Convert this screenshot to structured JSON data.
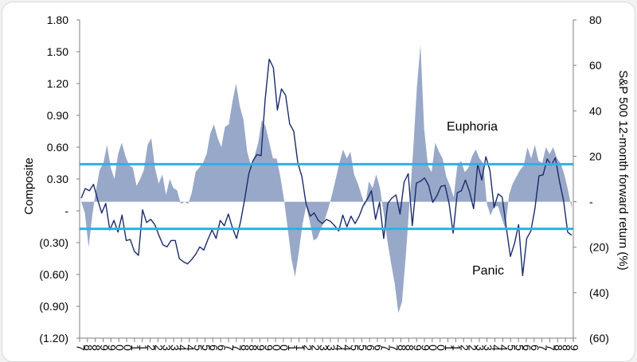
{
  "chart_data": {
    "type": "line",
    "ylabel_left": "Composite",
    "ylabel_right": "S&P 500 12-month forward return (%)",
    "left_axis": {
      "min": -1.2,
      "max": 1.8,
      "ticks": [
        1.8,
        1.5,
        1.2,
        0.9,
        0.6,
        0.3,
        0,
        -0.3,
        -0.6,
        -0.9,
        -1.2
      ],
      "tick_labels": [
        "1.80",
        "1.50",
        "1.20",
        "0.90",
        "0.60",
        "0.30",
        "-",
        "(0.30)",
        "(0.60)",
        "(0.90)",
        "(1.20)"
      ]
    },
    "right_axis": {
      "min": -60,
      "max": 80,
      "ticks": [
        80,
        60,
        40,
        20,
        0,
        -20,
        -40,
        -60
      ],
      "tick_labels": [
        "80",
        "60",
        "40",
        "20",
        "-",
        "(20)",
        "(40)",
        "(60)"
      ]
    },
    "x_tick_labels": [
      "7",
      "8",
      "8",
      "9",
      "9",
      "0",
      "0",
      "1",
      "1",
      "2",
      "2",
      "3",
      "3",
      "4",
      "4",
      "5",
      "5",
      "6",
      "6",
      "7",
      "7",
      "8",
      "8",
      "9",
      "9",
      "0",
      "0",
      "1",
      "1",
      "2",
      "2",
      "3",
      "3",
      "4",
      "4",
      "5",
      "5",
      "6",
      "6",
      "7",
      "7",
      "8",
      "8",
      "9",
      "9",
      "0",
      "0",
      "1",
      "1",
      "2",
      "2",
      "3",
      "3",
      "4",
      "4",
      "5",
      "5",
      "6",
      "6",
      "7",
      "7",
      "8",
      "8",
      "9"
    ],
    "thresholds": [
      {
        "label": "Euphoria",
        "value": 0.44,
        "color": "#27b4e3"
      },
      {
        "label": "Panic",
        "value": -0.17,
        "color": "#27b4e3"
      }
    ],
    "series": [
      {
        "name": "S&P 500 12-month forward return",
        "type": "area",
        "axis": "right",
        "color": "#98a8c8",
        "values": [
          0,
          -5,
          -20,
          -6,
          5,
          14,
          17,
          25,
          15,
          10,
          21,
          26,
          20,
          16,
          15,
          7,
          10,
          14,
          25,
          28,
          15,
          8,
          12,
          3,
          10,
          6,
          5,
          -1,
          0,
          -1,
          4,
          13,
          15,
          17,
          21,
          30,
          34,
          28,
          24,
          33,
          34,
          44,
          52,
          42,
          36,
          22,
          16,
          20,
          26,
          36,
          33,
          26,
          19,
          19,
          11,
          1,
          -12,
          -25,
          -33,
          -22,
          -10,
          -2,
          -9,
          -17,
          -16,
          -12,
          -8,
          -3,
          3,
          10,
          17,
          23,
          19,
          22,
          12,
          8,
          3,
          -2,
          9,
          6,
          12,
          6,
          -5,
          -17,
          -27,
          -36,
          -49,
          -44,
          -24,
          -1,
          22,
          50,
          69,
          32,
          16,
          13,
          26,
          22,
          19,
          11,
          7,
          2,
          16,
          18,
          13,
          15,
          20,
          23,
          19,
          17,
          -1,
          -6,
          -2,
          -2,
          -7,
          -12,
          3,
          8,
          11,
          14,
          16,
          24,
          19,
          25,
          18,
          17,
          24,
          21,
          24,
          19,
          17,
          12,
          5,
          -3
        ]
      },
      {
        "name": "Composite",
        "type": "line",
        "axis": "left",
        "color": "#1a2b6b",
        "values": [
          0.12,
          0.21,
          0.19,
          0.25,
          0.11,
          -0.02,
          0.07,
          -0.18,
          -0.09,
          -0.2,
          -0.04,
          -0.28,
          -0.27,
          -0.38,
          -0.42,
          0.01,
          -0.11,
          -0.08,
          -0.13,
          -0.23,
          -0.32,
          -0.34,
          -0.28,
          -0.28,
          -0.45,
          -0.48,
          -0.5,
          -0.46,
          -0.41,
          -0.34,
          -0.37,
          -0.27,
          -0.18,
          -0.26,
          -0.09,
          -0.14,
          -0.03,
          -0.16,
          -0.26,
          -0.1,
          0.11,
          0.35,
          0.47,
          0.53,
          0.52,
          1.05,
          1.43,
          1.35,
          0.95,
          1.15,
          1.09,
          0.82,
          0.75,
          0.45,
          0.32,
          0.07,
          -0.05,
          -0.02,
          -0.09,
          -0.12,
          -0.08,
          -0.1,
          -0.14,
          -0.19,
          -0.04,
          -0.15,
          -0.05,
          -0.12,
          -0.05,
          0.05,
          0.11,
          0.19,
          -0.08,
          0.08,
          -0.26,
          0.07,
          0.12,
          0.15,
          -0.03,
          0.27,
          0.35,
          -0.14,
          0.26,
          0.28,
          0.31,
          0.24,
          0.08,
          0.14,
          0.23,
          0.24,
          0.07,
          -0.21,
          0.17,
          0.19,
          0.29,
          0.18,
          0.02,
          0.44,
          0.29,
          0.51,
          0.38,
          0.03,
          0.16,
          0.13,
          -0.16,
          -0.43,
          -0.31,
          -0.13,
          -0.61,
          -0.26,
          -0.19,
          0.02,
          0.33,
          0.34,
          0.49,
          0.43,
          0.5,
          0.28,
          0.1,
          -0.2,
          -0.23
        ]
      }
    ],
    "grid": false,
    "legend": "none"
  }
}
